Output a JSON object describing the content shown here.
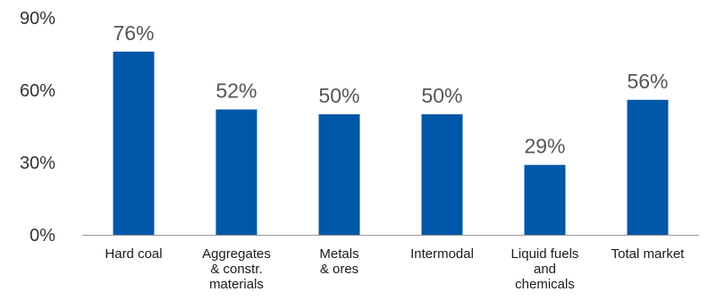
{
  "chart_data": {
    "type": "bar",
    "categories": [
      [
        "Hard coal"
      ],
      [
        "Aggregates",
        "& constr.",
        "materials"
      ],
      [
        "Metals",
        "& ores"
      ],
      [
        "Intermodal"
      ],
      [
        "Liquid fuels",
        "and",
        "chemicals"
      ],
      [
        "Total market"
      ]
    ],
    "values": [
      76,
      52,
      50,
      50,
      29,
      56
    ],
    "data_labels": [
      "76%",
      "52%",
      "50%",
      "50%",
      "29%",
      "56%"
    ],
    "yticks": [
      "0%",
      "30%",
      "60%",
      "90%"
    ],
    "ytick_values": [
      0,
      30,
      60,
      90
    ],
    "ylim": [
      0,
      90
    ],
    "grid": false,
    "legend": "none",
    "bar_color": "#0057a8",
    "axis_color": "#9a9a9a"
  }
}
